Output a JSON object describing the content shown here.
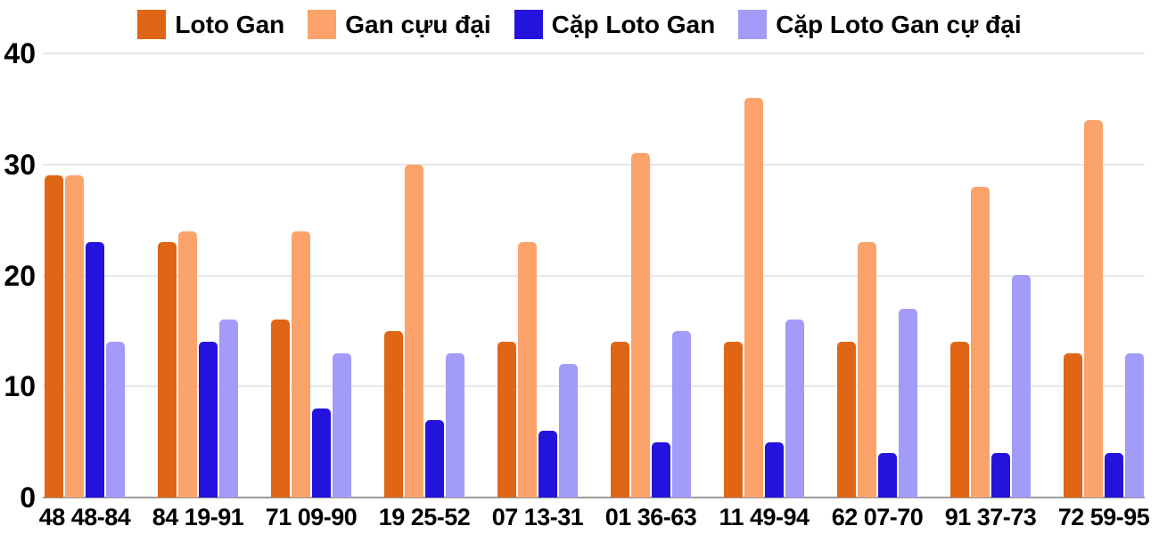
{
  "chart_data": {
    "type": "bar",
    "title": "",
    "xlabel": "",
    "ylabel": "",
    "ylim": [
      0,
      40
    ],
    "yticks": [
      0,
      10,
      20,
      30,
      40
    ],
    "grid": true,
    "legend_position": "top",
    "categories": [
      "48 48-84",
      "84 19-91",
      "71 09-90",
      "19 25-52",
      "07 13-31",
      "01 36-63",
      "11 49-94",
      "62 07-70",
      "91 37-73",
      "72 59-95"
    ],
    "series": [
      {
        "name": "Loto Gan",
        "color": "#E06514",
        "values": [
          29,
          23,
          16,
          15,
          14,
          14,
          14,
          14,
          14,
          13
        ]
      },
      {
        "name": "Gan cựu đại",
        "color": "#FBA36B",
        "values": [
          29,
          24,
          24,
          30,
          23,
          31,
          36,
          23,
          28,
          34
        ]
      },
      {
        "name": "Cặp Loto Gan",
        "color": "#2413DC",
        "values": [
          23,
          14,
          8,
          7,
          6,
          5,
          5,
          4,
          4,
          4
        ]
      },
      {
        "name": "Cặp Loto Gan cự đại",
        "color": "#A29BF8",
        "values": [
          14,
          16,
          13,
          13,
          12,
          15,
          16,
          17,
          20,
          13
        ]
      }
    ]
  },
  "colors": {
    "gridline": "#E8E8E8",
    "axis_line": "#9B9B9B",
    "text": "#000000",
    "background": "#FFFFFF"
  }
}
